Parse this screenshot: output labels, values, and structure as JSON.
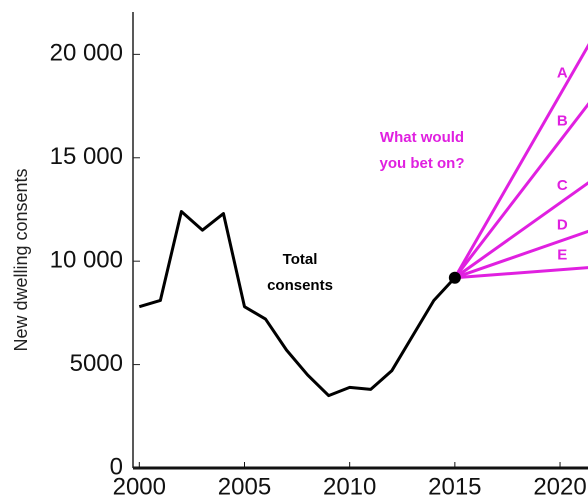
{
  "chart_data": {
    "type": "line",
    "y_label": "New dwelling consents",
    "x": [
      2000,
      2001,
      2002,
      2003,
      2004,
      2005,
      2006,
      2007,
      2008,
      2009,
      2010,
      2011,
      2012,
      2013,
      2014,
      2015
    ],
    "series": [
      {
        "name": "Total consents",
        "color": "#000000",
        "values": [
          7800,
          8100,
          12400,
          11500,
          12300,
          7800,
          7200,
          5700,
          4500,
          3500,
          3900,
          3800,
          4700,
          6400,
          8100,
          9200
        ]
      }
    ],
    "scenario_title": "What would you bet on?",
    "scenario_color": "#e020e0",
    "scenarios": [
      {
        "name": "A",
        "x": [
          2015,
          2021.5
        ],
        "values": [
          9200,
          20700
        ]
      },
      {
        "name": "B",
        "x": [
          2015,
          2021.5
        ],
        "values": [
          9200,
          17800
        ]
      },
      {
        "name": "C",
        "x": [
          2015,
          2021.5
        ],
        "values": [
          9200,
          13900
        ]
      },
      {
        "name": "D",
        "x": [
          2015,
          2021.5
        ],
        "values": [
          9200,
          11500
        ]
      },
      {
        "name": "E",
        "x": [
          2015,
          2021.5
        ],
        "values": [
          9200,
          9700
        ]
      }
    ],
    "xlim": [
      1999.7,
      2021.9
    ],
    "xticks": [
      2000,
      2005,
      2010,
      2015,
      2020
    ],
    "ylim": [
      0,
      22000
    ],
    "yticks": [
      0,
      5000,
      {
        "value": 10000,
        "label": "10 000"
      },
      {
        "value": 15000,
        "label": "15 000"
      },
      {
        "value": 20000,
        "label": "20 000"
      }
    ]
  }
}
